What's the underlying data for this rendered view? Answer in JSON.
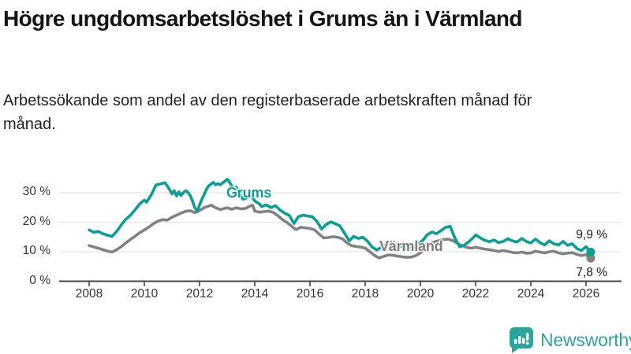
{
  "page": {
    "title": "Högre ungdomsarbetslöshet i Grums än i Värmland",
    "subtitle": "Arbetssökande som andel av den registerbaserade arbetskraften månad för månad."
  },
  "branding": {
    "logo_text": "Newsworthy",
    "logo_color": "#2da49c"
  },
  "colors": {
    "grums_teal": "#0a9f92",
    "varmland_gray": "#828282",
    "varmland_label_gray": "#7c7c7c",
    "gridline": "#e3e3e3",
    "axis": "#454545",
    "tick_text": "#333333"
  },
  "chart_data": {
    "type": "line",
    "title": "",
    "xlabel": "",
    "ylabel": "",
    "x_axis": {
      "tick_labels": [
        "2008",
        "2010",
        "2012",
        "2014",
        "2016",
        "2018",
        "2020",
        "2022",
        "2024",
        "2026"
      ],
      "tick_values": [
        2008,
        2010,
        2012,
        2014,
        2016,
        2018,
        2020,
        2022,
        2024,
        2026
      ],
      "range": [
        2008,
        2026.2
      ]
    },
    "y_axis": {
      "tick_labels": [
        "0 %",
        "10 %",
        "20 %",
        "30 %"
      ],
      "tick_values": [
        0,
        10,
        20,
        30
      ],
      "range": [
        0,
        36
      ],
      "grid": true
    },
    "legend_position": "inline-labels",
    "series": [
      {
        "name": "Värmland",
        "color": "#828282",
        "end_label": "7,8 %",
        "end_value": 7.8,
        "x": [
          2008.0,
          2008.17,
          2008.33,
          2008.5,
          2008.67,
          2008.83,
          2009.0,
          2009.17,
          2009.33,
          2009.5,
          2009.67,
          2009.83,
          2010.0,
          2010.17,
          2010.33,
          2010.5,
          2010.67,
          2010.83,
          2011.0,
          2011.17,
          2011.33,
          2011.5,
          2011.67,
          2011.83,
          2012.0,
          2012.17,
          2012.33,
          2012.42,
          2012.58,
          2012.75,
          2012.92,
          2013.0,
          2013.17,
          2013.33,
          2013.5,
          2013.67,
          2013.83,
          2013.92,
          2014.0,
          2014.17,
          2014.33,
          2014.5,
          2014.67,
          2014.83,
          2015.0,
          2015.17,
          2015.33,
          2015.5,
          2015.67,
          2015.83,
          2016.0,
          2016.17,
          2016.33,
          2016.5,
          2016.67,
          2016.83,
          2017.0,
          2017.17,
          2017.33,
          2017.5,
          2017.67,
          2017.83,
          2018.0,
          2018.17,
          2018.33,
          2018.5,
          2018.67,
          2018.83,
          2019.0,
          2019.17,
          2019.33,
          2019.5,
          2019.67,
          2019.83,
          2020.0,
          2020.17,
          2020.33,
          2020.5,
          2020.67,
          2020.83,
          2021.0,
          2021.17,
          2021.33,
          2021.5,
          2021.67,
          2021.83,
          2022.0,
          2022.17,
          2022.33,
          2022.5,
          2022.67,
          2022.83,
          2023.0,
          2023.17,
          2023.33,
          2023.5,
          2023.67,
          2023.83,
          2024.0,
          2024.17,
          2024.33,
          2024.5,
          2024.67,
          2024.83,
          2025.0,
          2025.17,
          2025.33,
          2025.5,
          2025.67,
          2025.83,
          2026.0,
          2026.17
        ],
        "values": [
          12.1,
          11.6,
          11.2,
          10.7,
          10.2,
          9.9,
          10.7,
          11.8,
          13.0,
          14.2,
          15.3,
          16.4,
          17.4,
          18.4,
          19.5,
          20.4,
          20.9,
          20.7,
          21.7,
          22.4,
          23.1,
          23.7,
          23.9,
          23.2,
          24.0,
          24.9,
          25.5,
          25.8,
          24.9,
          24.3,
          24.7,
          24.9,
          24.4,
          24.9,
          24.5,
          24.7,
          25.5,
          25.8,
          23.8,
          23.4,
          23.6,
          23.8,
          23.3,
          22.3,
          20.9,
          19.9,
          18.7,
          17.5,
          18.3,
          18.1,
          17.9,
          17.4,
          16.0,
          14.7,
          14.8,
          15.1,
          14.9,
          14.4,
          13.1,
          12.1,
          11.8,
          11.6,
          11.2,
          10.0,
          8.8,
          7.9,
          8.4,
          8.9,
          8.8,
          8.5,
          8.3,
          8.1,
          8.2,
          8.7,
          9.6,
          11.2,
          12.6,
          13.3,
          13.8,
          14.1,
          14.3,
          13.8,
          12.9,
          12.1,
          11.5,
          11.2,
          11.5,
          11.2,
          10.9,
          10.7,
          10.4,
          10.1,
          10.4,
          10.1,
          9.8,
          9.6,
          9.9,
          9.5,
          9.6,
          10.2,
          9.9,
          9.6,
          10.0,
          10.2,
          9.6,
          9.3,
          9.5,
          9.7,
          9.1,
          8.7,
          9.0,
          7.8
        ]
      },
      {
        "name": "Grums",
        "color": "#0a9f92",
        "end_label": "9,9 %",
        "end_value": 9.9,
        "x": [
          2008.0,
          2008.17,
          2008.33,
          2008.5,
          2008.67,
          2008.83,
          2009.0,
          2009.17,
          2009.33,
          2009.5,
          2009.67,
          2009.83,
          2010.0,
          2010.08,
          2010.25,
          2010.42,
          2010.58,
          2010.75,
          2010.92,
          2011.0,
          2011.08,
          2011.17,
          2011.25,
          2011.33,
          2011.42,
          2011.5,
          2011.58,
          2011.67,
          2011.75,
          2011.83,
          2011.92,
          2012.0,
          2012.08,
          2012.17,
          2012.25,
          2012.33,
          2012.42,
          2012.5,
          2012.58,
          2012.67,
          2012.75,
          2012.83,
          2012.92,
          2013.0,
          2013.08,
          2013.17,
          2013.25,
          2013.33,
          2013.42,
          2013.5,
          2013.58,
          2013.67,
          2013.75,
          2013.83,
          2013.92,
          2014.0,
          2014.17,
          2014.25,
          2014.42,
          2014.58,
          2014.75,
          2014.92,
          2015.08,
          2015.25,
          2015.42,
          2015.58,
          2015.75,
          2015.92,
          2016.08,
          2016.25,
          2016.42,
          2016.58,
          2016.75,
          2016.92,
          2017.08,
          2017.25,
          2017.42,
          2017.58,
          2017.75,
          2017.92,
          2018.08,
          2018.25,
          2018.42,
          2018.58,
          2018.75,
          2018.92,
          2019.08,
          2019.25,
          2019.42,
          2019.58,
          2019.75,
          2019.92,
          2020.08,
          2020.25,
          2020.42,
          2020.58,
          2020.75,
          2020.92,
          2021.08,
          2021.25,
          2021.42,
          2021.58,
          2021.75,
          2021.92,
          2022.0,
          2022.17,
          2022.33,
          2022.5,
          2022.67,
          2022.83,
          2023.0,
          2023.17,
          2023.33,
          2023.5,
          2023.67,
          2023.83,
          2024.0,
          2024.17,
          2024.33,
          2024.5,
          2024.67,
          2024.83,
          2025.0,
          2025.17,
          2025.33,
          2025.5,
          2025.67,
          2025.83,
          2026.0,
          2026.17
        ],
        "values": [
          17.4,
          16.6,
          16.9,
          16.1,
          15.6,
          15.2,
          16.9,
          19.2,
          21.0,
          22.4,
          24.3,
          26.2,
          27.5,
          26.8,
          29.3,
          32.6,
          33.0,
          33.4,
          31.0,
          29.6,
          30.7,
          28.9,
          30.3,
          29.1,
          30.1,
          30.7,
          30.1,
          28.9,
          27.0,
          24.9,
          23.7,
          25.9,
          27.7,
          29.5,
          31.2,
          32.3,
          33.0,
          33.5,
          32.7,
          33.1,
          32.7,
          33.3,
          33.9,
          34.6,
          33.7,
          32.1,
          31.3,
          31.9,
          30.3,
          28.7,
          27.8,
          28.1,
          28.6,
          29.1,
          28.3,
          27.2,
          26.2,
          25.3,
          25.9,
          25.0,
          25.6,
          24.1,
          23.1,
          22.3,
          19.6,
          21.9,
          22.4,
          22.1,
          21.9,
          20.3,
          17.7,
          19.2,
          20.1,
          19.5,
          18.8,
          16.3,
          13.7,
          15.2,
          14.5,
          14.9,
          13.6,
          11.6,
          10.6,
          11.5,
          12.5,
          13.1,
          11.9,
          12.3,
          11.0,
          11.3,
          11.8,
          12.6,
          13.8,
          15.8,
          16.7,
          16.1,
          17.2,
          18.3,
          18.6,
          14.6,
          11.7,
          12.2,
          13.4,
          14.8,
          15.7,
          14.7,
          13.9,
          13.4,
          14.0,
          13.1,
          13.5,
          14.4,
          13.7,
          13.3,
          14.5,
          13.5,
          13.0,
          14.3,
          13.1,
          12.3,
          13.7,
          12.7,
          12.3,
          13.5,
          12.2,
          12.7,
          11.1,
          10.4,
          11.7,
          9.9
        ]
      }
    ]
  }
}
